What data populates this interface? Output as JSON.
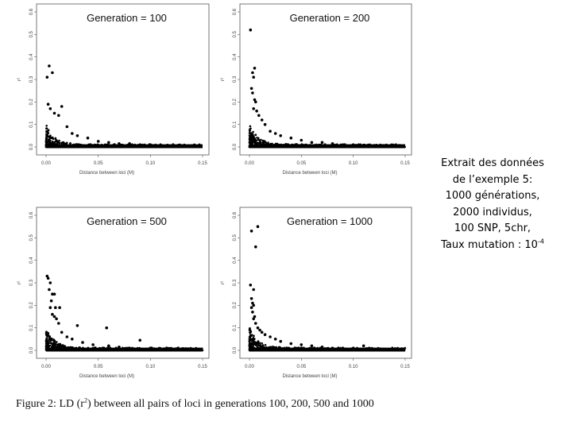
{
  "chart_data": [
    {
      "type": "scatter",
      "title": "Generation = 100",
      "xlabel": "Distance between loci (M)",
      "ylabel": "r²",
      "xlim": [
        0,
        0.15
      ],
      "ylim": [
        0,
        0.6
      ],
      "x_ticks": [
        "0.00",
        "0.05",
        "0.10",
        "0.15"
      ],
      "y_ticks": [
        "0.0",
        "0.1",
        "0.2",
        "0.3",
        "0.4",
        "0.5",
        "0.6"
      ],
      "series": [
        {
          "points": [
            [
              0.001,
              0.31
            ],
            [
              0.003,
              0.36
            ],
            [
              0.006,
              0.33
            ],
            [
              0.002,
              0.19
            ],
            [
              0.004,
              0.17
            ],
            [
              0.008,
              0.15
            ],
            [
              0.012,
              0.14
            ],
            [
              0.015,
              0.18
            ],
            [
              0.02,
              0.09
            ],
            [
              0.025,
              0.06
            ],
            [
              0.03,
              0.05
            ],
            [
              0.04,
              0.04
            ],
            [
              0.05,
              0.025
            ],
            [
              0.06,
              0.02
            ],
            [
              0.07,
              0.015
            ],
            [
              0.08,
              0.015
            ],
            [
              0.09,
              0.01
            ],
            [
              0.1,
              0.01
            ],
            [
              0.11,
              0.008
            ],
            [
              0.12,
              0.006
            ],
            [
              0.13,
              0.005
            ],
            [
              0.14,
              0.004
            ],
            [
              0.148,
              0.003
            ]
          ]
        }
      ],
      "grid": false
    },
    {
      "type": "scatter",
      "title": "Generation = 200",
      "xlabel": "Distance between loci (M)",
      "ylabel": "r²",
      "xlim": [
        0,
        0.15
      ],
      "ylim": [
        0,
        0.6
      ],
      "x_ticks": [
        "0.00",
        "0.05",
        "0.10",
        "0.15"
      ],
      "y_ticks": [
        "0.0",
        "0.1",
        "0.2",
        "0.3",
        "0.4",
        "0.5",
        "0.6"
      ],
      "series": [
        {
          "points": [
            [
              0.001,
              0.52
            ],
            [
              0.003,
              0.33
            ],
            [
              0.005,
              0.35
            ],
            [
              0.004,
              0.31
            ],
            [
              0.002,
              0.26
            ],
            [
              0.003,
              0.24
            ],
            [
              0.005,
              0.21
            ],
            [
              0.006,
              0.2
            ],
            [
              0.004,
              0.17
            ],
            [
              0.007,
              0.16
            ],
            [
              0.009,
              0.14
            ],
            [
              0.012,
              0.12
            ],
            [
              0.015,
              0.1
            ],
            [
              0.02,
              0.07
            ],
            [
              0.025,
              0.06
            ],
            [
              0.03,
              0.05
            ],
            [
              0.04,
              0.04
            ],
            [
              0.05,
              0.03
            ],
            [
              0.06,
              0.02
            ],
            [
              0.07,
              0.02
            ],
            [
              0.08,
              0.015
            ],
            [
              0.09,
              0.01
            ],
            [
              0.1,
              0.01
            ],
            [
              0.11,
              0.008
            ],
            [
              0.12,
              0.006
            ],
            [
              0.13,
              0.005
            ],
            [
              0.14,
              0.004
            ],
            [
              0.148,
              0.003
            ]
          ]
        }
      ],
      "grid": false
    },
    {
      "type": "scatter",
      "title": "Generation = 500",
      "xlabel": "Distance between loci (M)",
      "ylabel": "r²",
      "xlim": [
        0,
        0.15
      ],
      "ylim": [
        0,
        0.6
      ],
      "x_ticks": [
        "0.00",
        "0.05",
        "0.10",
        "0.15"
      ],
      "y_ticks": [
        "0.0",
        "0.1",
        "0.2",
        "0.3",
        "0.4",
        "0.5",
        "0.6"
      ],
      "series": [
        {
          "points": [
            [
              0.001,
              0.33
            ],
            [
              0.002,
              0.32
            ],
            [
              0.004,
              0.3
            ],
            [
              0.003,
              0.27
            ],
            [
              0.006,
              0.25
            ],
            [
              0.008,
              0.25
            ],
            [
              0.005,
              0.22
            ],
            [
              0.004,
              0.19
            ],
            [
              0.009,
              0.19
            ],
            [
              0.013,
              0.19
            ],
            [
              0.006,
              0.16
            ],
            [
              0.008,
              0.15
            ],
            [
              0.01,
              0.14
            ],
            [
              0.012,
              0.12
            ],
            [
              0.03,
              0.11
            ],
            [
              0.058,
              0.1
            ],
            [
              0.09,
              0.045
            ],
            [
              0.015,
              0.08
            ],
            [
              0.02,
              0.06
            ],
            [
              0.025,
              0.05
            ],
            [
              0.035,
              0.035
            ],
            [
              0.045,
              0.025
            ],
            [
              0.06,
              0.02
            ],
            [
              0.07,
              0.015
            ],
            [
              0.08,
              0.01
            ],
            [
              0.1,
              0.01
            ],
            [
              0.12,
              0.006
            ],
            [
              0.14,
              0.004
            ],
            [
              0.148,
              0.003
            ]
          ]
        }
      ],
      "grid": false
    },
    {
      "type": "scatter",
      "title": "Generation = 1000",
      "xlabel": "Distance between loci (M)",
      "ylabel": "r²",
      "xlim": [
        0,
        0.15
      ],
      "ylim": [
        0,
        0.6
      ],
      "x_ticks": [
        "0.00",
        "0.05",
        "0.10",
        "0.15"
      ],
      "y_ticks": [
        "0.0",
        "0.1",
        "0.2",
        "0.3",
        "0.4",
        "0.5",
        "0.6"
      ],
      "series": [
        {
          "points": [
            [
              0.002,
              0.53
            ],
            [
              0.008,
              0.55
            ],
            [
              0.006,
              0.46
            ],
            [
              0.001,
              0.29
            ],
            [
              0.004,
              0.27
            ],
            [
              0.002,
              0.23
            ],
            [
              0.003,
              0.21
            ],
            [
              0.004,
              0.2
            ],
            [
              0.002,
              0.19
            ],
            [
              0.003,
              0.17
            ],
            [
              0.005,
              0.15
            ],
            [
              0.004,
              0.14
            ],
            [
              0.006,
              0.12
            ],
            [
              0.008,
              0.1
            ],
            [
              0.01,
              0.09
            ],
            [
              0.012,
              0.08
            ],
            [
              0.015,
              0.07
            ],
            [
              0.02,
              0.06
            ],
            [
              0.025,
              0.05
            ],
            [
              0.03,
              0.04
            ],
            [
              0.04,
              0.03
            ],
            [
              0.05,
              0.025
            ],
            [
              0.06,
              0.02
            ],
            [
              0.07,
              0.015
            ],
            [
              0.08,
              0.01
            ],
            [
              0.09,
              0.01
            ],
            [
              0.1,
              0.01
            ],
            [
              0.11,
              0.02
            ],
            [
              0.12,
              0.006
            ],
            [
              0.13,
              0.005
            ],
            [
              0.14,
              0.004
            ],
            [
              0.148,
              0.003
            ]
          ]
        }
      ],
      "grid": false
    }
  ],
  "side_note": {
    "line1": "Extrait des données",
    "line2": "de l’exemple 5:",
    "line3": "1000 générations,",
    "line4": "2000 individus,",
    "line5": "100 SNP, 5chr,",
    "line6_prefix": "Taux mutation : 10",
    "line6_exponent": "-4"
  },
  "caption": {
    "prefix": "Figure 2: LD (r",
    "exponent": "2",
    "suffix": ") between all pairs of loci in generations 100, 200, 500 and 1000"
  }
}
